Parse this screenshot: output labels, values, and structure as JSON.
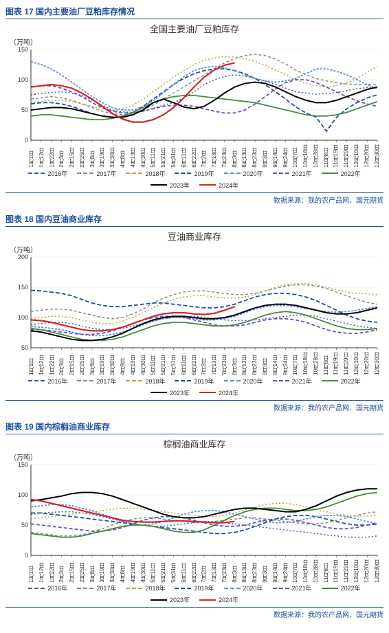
{
  "x_labels": [
    "1月1日",
    "1月12日",
    "1月22日",
    "2月3日",
    "2月15日",
    "2月25日",
    "3月8日",
    "3月19日",
    "3月30日",
    "4月8日",
    "4月19日",
    "4月30日",
    "5月11日",
    "5月21日",
    "5月31日",
    "6月11日",
    "6月22日",
    "7月2日",
    "7月13日",
    "7月23日",
    "8月3日",
    "8月13日",
    "8月23日",
    "9月3日",
    "9月14日",
    "9月24日",
    "10月7日",
    "10月18日",
    "10月28日",
    "11月8日",
    "11月19日",
    "11月29日",
    "12月10日",
    "12月20日",
    "12月30日"
  ],
  "series_styles": {
    "2016": {
      "color": "#3b5aa3",
      "dash": "2,3",
      "width": 1.5,
      "label": "2016年"
    },
    "2017": {
      "color": "#8a8a8a",
      "dash": "4,3",
      "width": 1.5,
      "label": "2017年"
    },
    "2018": {
      "color": "#b9a838",
      "dash": "2,3",
      "width": 1.5,
      "label": "2018年"
    },
    "2019": {
      "color": "#1f4e9c",
      "dash": "6,3",
      "width": 1.8,
      "label": "2019年"
    },
    "2020": {
      "color": "#5b8fd6",
      "dash": "3,2",
      "width": 1.8,
      "label": "2020年"
    },
    "2021": {
      "color": "#6b4fbf",
      "dash": "5,3",
      "width": 1.8,
      "label": "2021年"
    },
    "2022": {
      "color": "#4a8a3a",
      "dash": "",
      "width": 1.8,
      "label": "2022年"
    },
    "2023": {
      "color": "#000000",
      "dash": "",
      "width": 2.0,
      "label": "2023年"
    },
    "2024": {
      "color": "#d62424",
      "dash": "",
      "width": 2.2,
      "label": "2024年"
    }
  },
  "charts": [
    {
      "header": "图表 17 国内主要油厂豆粕库存情况",
      "title": "全国主要油厂豆粕库存",
      "ylabel": "（万吨）",
      "ylim": [
        0,
        150
      ],
      "ytick_step": 50,
      "source": "数据来源：我的农产品网、国元期货",
      "series": {
        "2016": [
          75,
          77,
          79,
          80,
          78,
          74,
          66,
          58,
          50,
          47,
          46,
          48,
          53,
          58,
          62,
          70,
          80,
          92,
          100,
          105,
          108,
          106,
          102,
          98,
          92,
          86,
          80,
          78,
          76,
          77,
          79,
          82,
          85,
          87,
          88
        ],
        "2017": [
          68,
          70,
          72,
          70,
          66,
          60,
          54,
          48,
          44,
          42,
          44,
          50,
          58,
          68,
          78,
          88,
          98,
          108,
          118,
          128,
          135,
          140,
          142,
          140,
          134,
          126,
          116,
          108,
          102,
          98,
          95,
          93,
          92,
          92,
          92
        ],
        "2018": [
          62,
          64,
          66,
          66,
          64,
          60,
          56,
          52,
          50,
          52,
          58,
          68,
          80,
          92,
          104,
          115,
          125,
          132,
          136,
          138,
          138,
          135,
          130,
          124,
          116,
          108,
          100,
          94,
          90,
          88,
          90,
          95,
          102,
          112,
          122
        ],
        "2019": [
          60,
          62,
          62,
          60,
          56,
          50,
          44,
          40,
          38,
          40,
          46,
          56,
          68,
          80,
          92,
          102,
          110,
          115,
          118,
          118,
          115,
          110,
          102,
          92,
          80,
          68,
          55,
          45,
          38,
          15,
          38,
          52,
          62,
          70,
          75
        ],
        "2020": [
          130,
          125,
          118,
          108,
          96,
          84,
          72,
          62,
          54,
          50,
          50,
          55,
          65,
          78,
          92,
          105,
          115,
          120,
          122,
          120,
          115,
          108,
          102,
          98,
          96,
          98,
          102,
          110,
          118,
          118,
          114,
          108,
          100,
          92,
          85
        ],
        "2021": [
          88,
          90,
          90,
          86,
          80,
          72,
          62,
          54,
          48,
          45,
          45,
          48,
          52,
          56,
          58,
          58,
          56,
          52,
          48,
          45,
          45,
          50,
          60,
          72,
          85,
          95,
          100,
          100,
          95,
          88,
          80,
          72,
          65,
          60,
          56
        ],
        "2022": [
          40,
          42,
          42,
          40,
          38,
          36,
          34,
          34,
          36,
          40,
          46,
          54,
          62,
          68,
          72,
          74,
          74,
          72,
          70,
          68,
          66,
          64,
          62,
          58,
          54,
          50,
          46,
          42,
          40,
          40,
          42,
          46,
          52,
          58,
          64
        ],
        "2023": [
          50,
          52,
          54,
          54,
          52,
          48,
          44,
          40,
          38,
          38,
          42,
          50,
          62,
          68,
          62,
          55,
          52,
          56,
          66,
          78,
          88,
          94,
          96,
          94,
          88,
          80,
          72,
          66,
          62,
          62,
          66,
          72,
          78,
          84,
          88
        ],
        "2024": [
          88,
          90,
          92,
          90,
          86,
          78,
          68,
          56,
          44,
          35,
          30,
          30,
          34,
          42,
          54,
          70,
          88,
          104,
          116,
          124,
          128
        ]
      }
    },
    {
      "header": "图表 18 国内豆油商业库存",
      "title": "豆油商业库存",
      "ylabel": "（万吨）",
      "ylim": [
        50,
        200
      ],
      "ytick_step": 50,
      "source": "数据来源：我的农产品网、国元期货",
      "series": {
        "2016": [
          88,
          90,
          92,
          92,
          90,
          86,
          82,
          80,
          80,
          82,
          86,
          90,
          94,
          98,
          100,
          102,
          102,
          100,
          98,
          96,
          95,
          95,
          96,
          98,
          100,
          102,
          104,
          104,
          102,
          98,
          94,
          90,
          86,
          84,
          82
        ],
        "2017": [
          110,
          112,
          114,
          114,
          112,
          108,
          104,
          100,
          98,
          100,
          106,
          114,
          124,
          132,
          138,
          142,
          144,
          144,
          142,
          140,
          138,
          138,
          140,
          144,
          148,
          152,
          154,
          154,
          152,
          148,
          142,
          136,
          130,
          125,
          122
        ],
        "2018": [
          98,
          100,
          102,
          102,
          100,
          96,
          92,
          90,
          90,
          94,
          100,
          108,
          116,
          124,
          130,
          134,
          136,
          136,
          134,
          132,
          132,
          134,
          138,
          144,
          150,
          154,
          156,
          156,
          154,
          150,
          146,
          142,
          140,
          139,
          138
        ],
        "2019": [
          145,
          144,
          142,
          140,
          136,
          130,
          124,
          120,
          118,
          118,
          120,
          122,
          124,
          124,
          122,
          120,
          118,
          116,
          116,
          118,
          122,
          128,
          134,
          138,
          140,
          140,
          138,
          134,
          128,
          120,
          112,
          104,
          98,
          94,
          92
        ],
        "2020": [
          85,
          84,
          82,
          80,
          76,
          72,
          70,
          70,
          72,
          76,
          82,
          88,
          94,
          98,
          100,
          100,
          98,
          96,
          96,
          98,
          102,
          108,
          114,
          118,
          120,
          120,
          118,
          115,
          112,
          110,
          109,
          110,
          112,
          115,
          118
        ],
        "2021": [
          80,
          80,
          78,
          76,
          74,
          72,
          72,
          74,
          78,
          84,
          90,
          96,
          100,
          102,
          102,
          100,
          96,
          92,
          88,
          86,
          86,
          88,
          92,
          96,
          98,
          98,
          96,
          92,
          86,
          80,
          76,
          74,
          74,
          76,
          80
        ],
        "2022": [
          82,
          80,
          76,
          72,
          68,
          64,
          62,
          62,
          64,
          68,
          74,
          80,
          86,
          90,
          92,
          92,
          90,
          88,
          86,
          86,
          88,
          92,
          98,
          104,
          108,
          110,
          108,
          104,
          98,
          92,
          86,
          82,
          80,
          80,
          82
        ],
        "2023": [
          78,
          76,
          72,
          68,
          64,
          62,
          62,
          64,
          68,
          74,
          82,
          90,
          96,
          100,
          102,
          102,
          100,
          98,
          98,
          100,
          104,
          110,
          116,
          120,
          122,
          122,
          120,
          116,
          112,
          108,
          106,
          106,
          108,
          112,
          116
        ],
        "2024": [
          96,
          95,
          92,
          88,
          84,
          80,
          78,
          78,
          80,
          84,
          90,
          96,
          102,
          106,
          108,
          108,
          106,
          105,
          107,
          112,
          118
        ]
      }
    },
    {
      "header": "图表 19 国内棕榈油商业库存",
      "title": "棕榈油商业库存",
      "ylabel": "（万吨）",
      "ylim": [
        0,
        150
      ],
      "ytick_step": 50,
      "source": "数据来源：我的农产品网、国元期货",
      "series": {
        "2016": [
          68,
          70,
          71,
          72,
          72,
          70,
          68,
          64,
          60,
          56,
          52,
          50,
          48,
          48,
          50,
          52,
          54,
          56,
          56,
          54,
          52,
          50,
          48,
          46,
          44,
          42,
          40,
          38,
          36,
          34,
          32,
          30,
          30,
          30,
          32
        ],
        "2017": [
          38,
          36,
          34,
          32,
          32,
          34,
          38,
          44,
          50,
          56,
          60,
          62,
          62,
          60,
          58,
          56,
          54,
          54,
          56,
          58,
          60,
          62,
          62,
          60,
          58,
          56,
          54,
          52,
          52,
          54,
          58,
          62,
          66,
          70,
          72
        ],
        "2018": [
          60,
          62,
          64,
          66,
          68,
          70,
          72,
          74,
          76,
          78,
          78,
          76,
          74,
          72,
          70,
          68,
          66,
          64,
          64,
          66,
          70,
          75,
          80,
          84,
          86,
          86,
          84,
          80,
          76,
          72,
          68,
          66,
          65,
          65,
          66
        ],
        "2019": [
          70,
          70,
          68,
          66,
          64,
          62,
          60,
          58,
          56,
          54,
          52,
          50,
          48,
          46,
          44,
          42,
          40,
          38,
          36,
          36,
          38,
          42,
          48,
          54,
          60,
          64,
          66,
          66,
          64,
          60,
          56,
          52,
          50,
          50,
          52
        ],
        "2020": [
          80,
          82,
          84,
          84,
          82,
          78,
          74,
          68,
          62,
          56,
          52,
          50,
          52,
          56,
          62,
          68,
          72,
          74,
          74,
          72,
          68,
          64,
          60,
          56,
          54,
          54,
          56,
          60,
          64,
          66,
          66,
          64,
          60,
          56,
          52
        ],
        "2021": [
          52,
          50,
          48,
          46,
          44,
          42,
          40,
          40,
          42,
          46,
          52,
          58,
          62,
          64,
          64,
          62,
          58,
          54,
          50,
          48,
          48,
          50,
          54,
          58,
          60,
          60,
          58,
          54,
          50,
          46,
          44,
          44,
          46,
          50,
          54
        ],
        "2022": [
          36,
          34,
          32,
          30,
          30,
          32,
          36,
          40,
          44,
          48,
          50,
          50,
          48,
          44,
          40,
          38,
          38,
          42,
          50,
          58,
          66,
          72,
          76,
          78,
          78,
          76,
          74,
          74,
          76,
          80,
          86,
          92,
          98,
          102,
          104
        ],
        "2023": [
          90,
          92,
          95,
          98,
          102,
          104,
          104,
          102,
          98,
          92,
          86,
          80,
          74,
          68,
          64,
          62,
          62,
          64,
          68,
          72,
          76,
          78,
          78,
          76,
          74,
          72,
          72,
          76,
          82,
          90,
          98,
          104,
          108,
          110,
          110
        ],
        "2024": [
          92,
          90,
          86,
          82,
          78,
          74,
          70,
          66,
          62,
          58,
          56,
          55,
          55,
          56,
          57,
          57,
          56,
          55,
          54,
          54,
          56
        ]
      }
    }
  ]
}
